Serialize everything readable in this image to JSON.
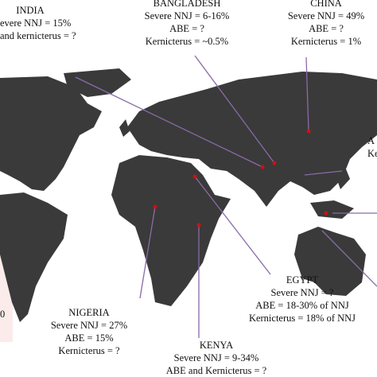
{
  "labels": {
    "india": {
      "name": "INDIA",
      "lines": [
        "evere NNJ = 15%",
        "and kernicterus = ?"
      ]
    },
    "bangladesh": {
      "name": "BANGLADESH",
      "lines": [
        "Severe NNJ = 6-16%",
        "ABE = ?",
        "Kernicterus = ~0.5%"
      ]
    },
    "china": {
      "name": "CHINA",
      "lines": [
        "Severe NNJ = 49%",
        "ABE = ?",
        "Kernicterus = 1%"
      ]
    },
    "right_cut": {
      "lines": [
        "A",
        "Ke"
      ]
    },
    "left_cut": {
      "lines": [
        "0"
      ]
    },
    "nigeria": {
      "name": "NIGERIA",
      "lines": [
        "Severe NNJ = 27%",
        "ABE = 15%",
        "Kernicterus = ?"
      ]
    },
    "egypt": {
      "name": "EGYPT",
      "lines": [
        "Severe NNJ = ?",
        "ABE = 18-30% of NNJ",
        "Kernicterus = 18% of NNJ"
      ]
    },
    "kenya": {
      "name": "KENYA",
      "lines": [
        "Severe NNJ = 9-34%",
        "ABE and Kernicterus = ?"
      ]
    }
  }
}
